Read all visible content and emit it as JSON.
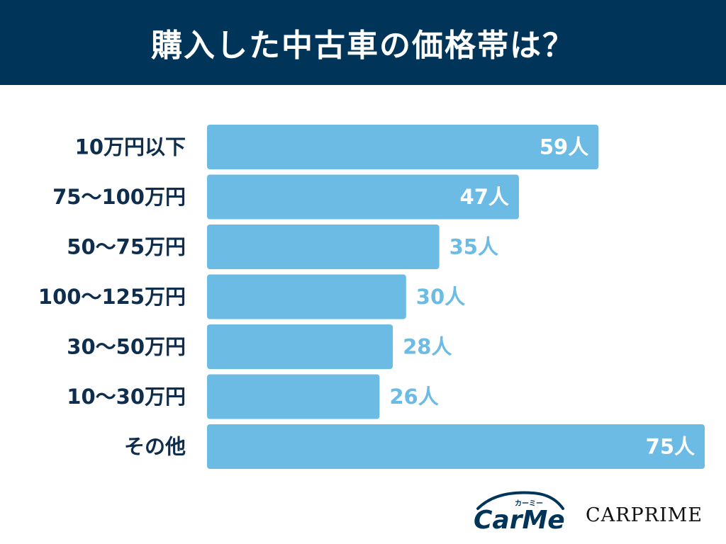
{
  "header": {
    "title": "購入した中古車の価格帯は？"
  },
  "chart_data": {
    "type": "bar",
    "orientation": "horizontal",
    "title": "購入した中古車の価格帯は？",
    "categories": [
      "10万円以下",
      "75〜100万円",
      "50〜75万円",
      "100〜125万円",
      "30〜50万円",
      "10〜30万円",
      "その他"
    ],
    "values": [
      59,
      47,
      35,
      30,
      28,
      26,
      75
    ],
    "value_labels": [
      "59人",
      "47人",
      "35人",
      "30人",
      "28人",
      "26人",
      "75人"
    ],
    "unit": "人",
    "xlim": [
      0,
      75
    ],
    "grid": false,
    "bar_color": "#6bbbe4",
    "label_inside_color": "#ffffff",
    "label_outside_color": "#6bbbe4",
    "category_color": "#0f2d4c"
  },
  "logos": {
    "carme": "CarMe",
    "carme_sub": "カーミー",
    "carprime": "CARPRIME"
  }
}
